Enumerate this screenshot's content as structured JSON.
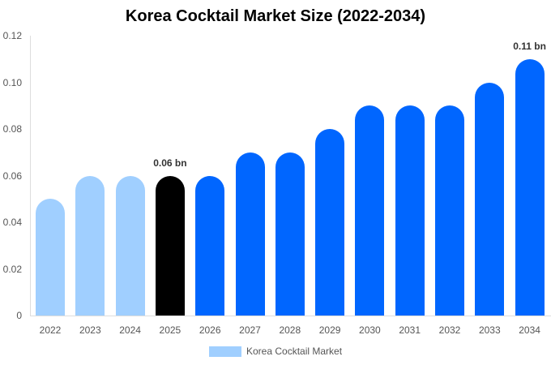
{
  "chart_data": {
    "type": "bar",
    "title": "Korea Cocktail Market Size (2022-2034)",
    "xlabel": "",
    "ylabel": "",
    "ylim": [
      0,
      0.12
    ],
    "yticks": [
      "0",
      "0.02",
      "0.04",
      "0.06",
      "0.08",
      "0.10",
      "0.12"
    ],
    "categories": [
      "2022",
      "2023",
      "2024",
      "2025",
      "2026",
      "2027",
      "2028",
      "2029",
      "2030",
      "2031",
      "2032",
      "2033",
      "2034"
    ],
    "series": [
      {
        "name": "Korea Cocktail Market",
        "values": [
          0.05,
          0.06,
          0.06,
          0.06,
          0.06,
          0.07,
          0.07,
          0.08,
          0.09,
          0.09,
          0.09,
          0.1,
          0.11
        ]
      }
    ],
    "bar_colors": [
      "#a0cfff",
      "#a0cfff",
      "#a0cfff",
      "#000000",
      "#0066ff",
      "#0066ff",
      "#0066ff",
      "#0066ff",
      "#0066ff",
      "#0066ff",
      "#0066ff",
      "#0066ff",
      "#0066ff"
    ],
    "annotations": [
      {
        "index": 3,
        "text": "0.06 bn"
      },
      {
        "index": 12,
        "text": "0.11 bn"
      }
    ],
    "legend": {
      "label": "Korea Cocktail Market",
      "color": "#a0cfff",
      "position": "bottom"
    },
    "grid": false
  }
}
